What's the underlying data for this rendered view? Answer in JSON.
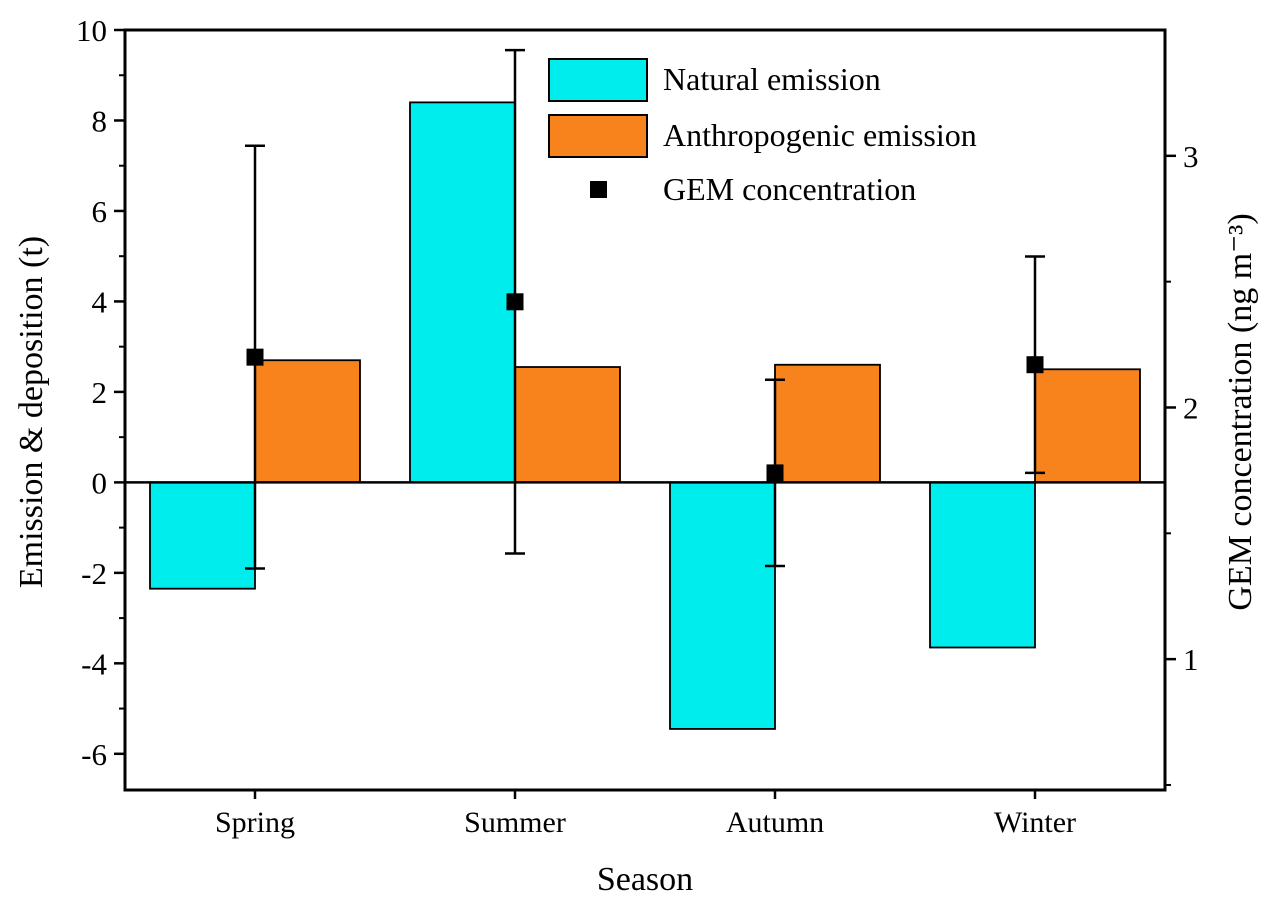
{
  "chart_data": {
    "type": "bar",
    "title": "",
    "grid": false,
    "categories": [
      "Spring",
      "Summer",
      "Autumn",
      "Winter"
    ],
    "x_axis": {
      "label": "Season"
    },
    "left_axis": {
      "label": "Emission & deposition (t)",
      "min": -6.8,
      "max": 10,
      "ticks": [
        -6,
        -4,
        -2,
        0,
        2,
        4,
        6,
        8,
        10
      ]
    },
    "right_axis": {
      "label": "GEM concentration (ng m⁻³)",
      "min": 0.48,
      "max": 3.5,
      "ticks": [
        1,
        2,
        3
      ]
    },
    "series": [
      {
        "name": "Natural emission",
        "type": "bar",
        "axis": "left",
        "color": "#00EDED",
        "values": [
          -2.35,
          8.4,
          -5.45,
          -3.65
        ]
      },
      {
        "name": "Anthropogenic emission",
        "type": "bar",
        "axis": "left",
        "color": "#F8821B",
        "values": [
          2.7,
          2.55,
          2.6,
          2.5
        ]
      }
    ],
    "gem": {
      "name": "GEM concentration",
      "type": "scatter",
      "axis": "right",
      "marker": "square",
      "color": "#000000",
      "values": [
        2.2,
        2.42,
        1.74,
        2.17
      ],
      "errors": [
        0.84,
        1.0,
        0.37,
        0.43
      ]
    },
    "legend_position": "top-center"
  }
}
